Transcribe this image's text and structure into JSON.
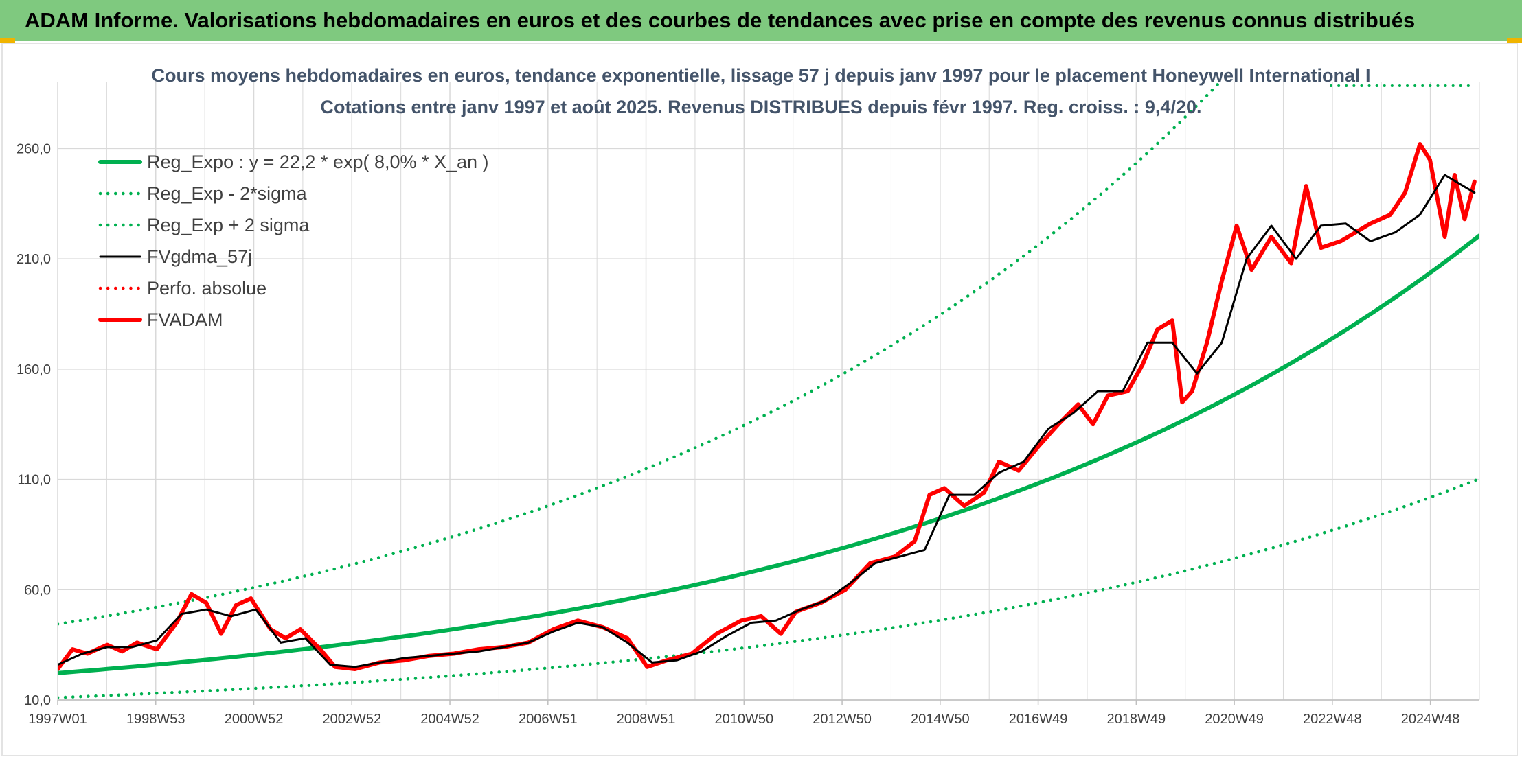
{
  "banner": {
    "title": "ADAM Informe. Valorisations hebdomadaires en euros et des courbes de tendances avec prise en compte des revenus connus distribués"
  },
  "colors": {
    "banner_bg": "#7fc97f",
    "reg_green": "#00b050",
    "fv_red": "#ff0000",
    "fv_black": "#000000",
    "grid": "#d9d9d9",
    "title_text": "#44546a"
  },
  "chart_data": {
    "type": "line",
    "title": "Cours moyens hebdomadaires en euros, tendance exponentielle, lissage 57 j depuis janv 1997 pour le placement Honeywell International I",
    "subtitle": "Cotations entre janv 1997 et août 2025. Revenus DISTRIBUES depuis févr 1997. Reg. croiss. : 9,4/20.",
    "xlabel": "",
    "ylabel": "",
    "ylim": [
      10,
      290
    ],
    "xlim": [
      1997.0,
      2025.7
    ],
    "y_ticks": [
      10,
      60,
      110,
      160,
      210,
      260
    ],
    "y_tick_labels": [
      "10,0",
      "60,0",
      "110,0",
      "160,0",
      "210,0",
      "260,0"
    ],
    "x_tick_labels": [
      "1997W01",
      "1998W53",
      "2000W52",
      "2002W52",
      "2004W52",
      "2006W51",
      "2008W51",
      "2010W50",
      "2012W50",
      "2014W50",
      "2016W49",
      "2018W49",
      "2020W49",
      "2022W48",
      "2024W48"
    ],
    "grid": true,
    "legend_position": "top-left",
    "regression": {
      "a": 22.2,
      "growth": 0.08
    },
    "series": [
      {
        "name": "Reg_Expo : y = 22,2 * exp( 8,0% *  X_an )",
        "style": "solid-thick",
        "color": "#00b050",
        "x": [
          1997,
          1999,
          2001,
          2003,
          2005,
          2007,
          2009,
          2011,
          2013,
          2015,
          2017,
          2019,
          2021,
          2023,
          2025,
          2025.7
        ],
        "y": [
          22.2,
          26.1,
          30.6,
          36.0,
          42.2,
          49.6,
          58.2,
          68.3,
          80.2,
          94.2,
          110.6,
          129.8,
          152.4,
          178.9,
          210.1,
          222.0
        ]
      },
      {
        "name": "Reg_Exp - 2*sigma",
        "style": "dotted",
        "color": "#00b050",
        "x": [
          1997,
          1999,
          2001,
          2003,
          2005,
          2007,
          2009,
          2011,
          2013,
          2015,
          2017,
          2019,
          2021,
          2023,
          2025,
          2025.7
        ],
        "y": [
          11.1,
          13.1,
          15.3,
          18.0,
          21.1,
          24.8,
          29.1,
          34.2,
          40.1,
          47.1,
          55.3,
          64.9,
          76.2,
          89.5,
          105.0,
          111.0
        ]
      },
      {
        "name": "Reg_Exp + 2 sigma",
        "style": "dotted",
        "color": "#00b050",
        "x": [
          1997,
          1999,
          2001,
          2003,
          2005,
          2007,
          2009,
          2011,
          2013,
          2015,
          2017,
          2019,
          2020.5
        ],
        "y": [
          44.4,
          52.1,
          61.2,
          71.9,
          84.4,
          99.1,
          116.3,
          136.6,
          160.3,
          188.2,
          221.0,
          259.5,
          292.0
        ]
      },
      {
        "name": "FVgdma_57j",
        "style": "solid",
        "color": "#000000",
        "x": [
          1997.0,
          1997.5,
          1998.0,
          1998.5,
          1999.0,
          1999.5,
          2000.0,
          2000.5,
          2001.0,
          2001.5,
          2002.0,
          2002.5,
          2003.0,
          2003.5,
          2004.0,
          2004.5,
          2005.0,
          2005.5,
          2006.0,
          2006.5,
          2007.0,
          2007.5,
          2008.0,
          2008.5,
          2009.0,
          2009.5,
          2010.0,
          2010.5,
          2011.0,
          2011.5,
          2012.0,
          2012.5,
          2013.0,
          2013.5,
          2014.0,
          2014.5,
          2015.0,
          2015.5,
          2016.0,
          2016.5,
          2017.0,
          2017.5,
          2018.0,
          2018.5,
          2019.0,
          2019.5,
          2020.0,
          2020.5,
          2021.0,
          2021.5,
          2022.0,
          2022.5,
          2023.0,
          2023.5,
          2024.0,
          2024.5,
          2025.0,
          2025.6
        ],
        "y": [
          26,
          31,
          34,
          34,
          37,
          49,
          51,
          48,
          51,
          36,
          38,
          26,
          25,
          27,
          29,
          30,
          31,
          32,
          34,
          36,
          41,
          45,
          43,
          36,
          27,
          28,
          32,
          39,
          45,
          46,
          51,
          55,
          63,
          72,
          75,
          78,
          103,
          103,
          113,
          118,
          133,
          140,
          150,
          150,
          172,
          172,
          158,
          172,
          210,
          225,
          210,
          225,
          226,
          218,
          222,
          230,
          248,
          240
        ]
      },
      {
        "name": "Perfo. absolue",
        "style": "dotted",
        "color": "#ff0000",
        "x": [],
        "y": []
      },
      {
        "name": "FVADAM",
        "style": "solid-thick",
        "color": "#ff0000",
        "x": [
          1997.0,
          1997.3,
          1997.6,
          1998.0,
          1998.3,
          1998.6,
          1999.0,
          1999.4,
          1999.7,
          2000.0,
          2000.3,
          2000.6,
          2000.9,
          2001.3,
          2001.6,
          2001.9,
          2002.3,
          2002.6,
          2003.0,
          2003.5,
          2004.0,
          2004.5,
          2005.0,
          2005.5,
          2006.0,
          2006.5,
          2007.0,
          2007.5,
          2008.0,
          2008.5,
          2008.9,
          2009.3,
          2009.8,
          2010.3,
          2010.8,
          2011.2,
          2011.6,
          2011.9,
          2012.4,
          2012.9,
          2013.4,
          2013.9,
          2014.3,
          2014.6,
          2014.9,
          2015.3,
          2015.7,
          2016.0,
          2016.4,
          2016.8,
          2017.2,
          2017.6,
          2017.9,
          2018.2,
          2018.6,
          2018.9,
          2019.2,
          2019.5,
          2019.7,
          2019.9,
          2020.2,
          2020.5,
          2020.8,
          2021.1,
          2021.5,
          2021.9,
          2022.2,
          2022.5,
          2022.9,
          2023.2,
          2023.5,
          2023.9,
          2024.2,
          2024.5,
          2024.7,
          2025.0,
          2025.2,
          2025.4,
          2025.6
        ],
        "y": [
          24,
          33,
          31,
          35,
          32,
          36,
          33,
          45,
          58,
          54,
          40,
          53,
          56,
          42,
          38,
          42,
          33,
          25,
          24,
          27,
          28,
          30,
          31,
          33,
          34,
          36,
          42,
          46,
          43,
          38,
          25,
          28,
          31,
          40,
          46,
          48,
          40,
          50,
          54,
          60,
          72,
          75,
          82,
          103,
          106,
          98,
          104,
          118,
          114,
          125,
          135,
          144,
          135,
          148,
          150,
          162,
          178,
          182,
          145,
          150,
          172,
          200,
          225,
          205,
          220,
          208,
          243,
          215,
          218,
          222,
          226,
          230,
          240,
          262,
          255,
          220,
          248,
          228,
          245
        ]
      }
    ]
  }
}
